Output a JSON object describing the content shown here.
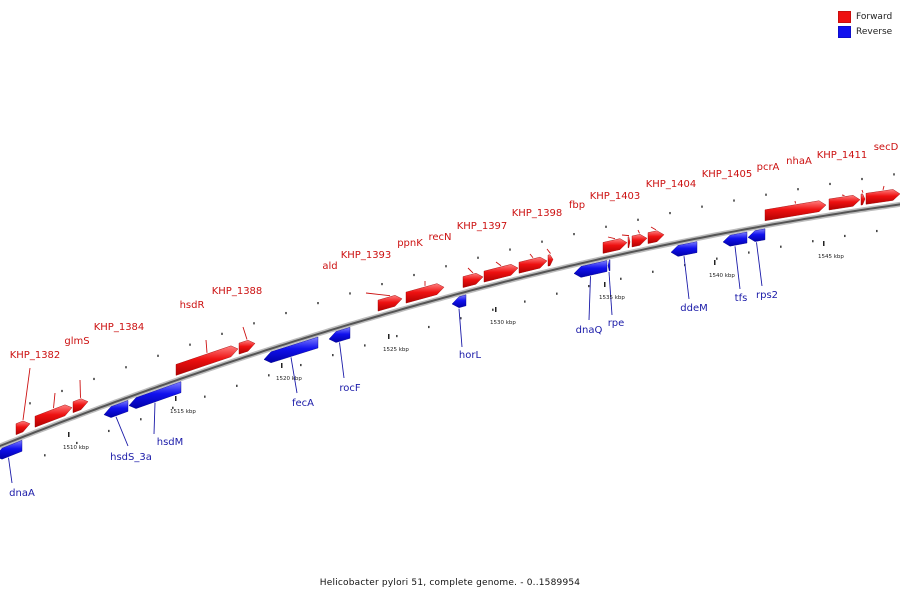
{
  "legend": {
    "forward_label": "Forward",
    "reverse_label": "Reverse",
    "forward_color": "#ee1111",
    "reverse_color": "#1111ee"
  },
  "caption": "Helicobacter pylori 51, complete genome. - 0..1589954",
  "genes_forward": [
    {
      "name": "KHP_1382"
    },
    {
      "name": "glmS"
    },
    {
      "name": "KHP_1384"
    },
    {
      "name": "hsdR"
    },
    {
      "name": "KHP_1388"
    },
    {
      "name": "ald"
    },
    {
      "name": "KHP_1393"
    },
    {
      "name": "ppnK"
    },
    {
      "name": "recN"
    },
    {
      "name": "KHP_1397"
    },
    {
      "name": "KHP_1398"
    },
    {
      "name": "fbp"
    },
    {
      "name": "KHP_1403"
    },
    {
      "name": "KHP_1404"
    },
    {
      "name": "KHP_1405"
    },
    {
      "name": "pcrA"
    },
    {
      "name": "nhaA"
    },
    {
      "name": "KHP_1411"
    },
    {
      "name": "secD"
    }
  ],
  "genes_reverse": [
    {
      "name": "dnaA"
    },
    {
      "name": "hsdS_3a"
    },
    {
      "name": "hsdM"
    },
    {
      "name": "fecA"
    },
    {
      "name": "rocF"
    },
    {
      "name": "horL"
    },
    {
      "name": "dnaQ"
    },
    {
      "name": "rpe"
    },
    {
      "name": "ddeM"
    },
    {
      "name": "tfs"
    },
    {
      "name": "rps2"
    }
  ],
  "kbp_labels": [
    "1510 kbp",
    "1515 kbp",
    "1520 kbp",
    "1525 kbp",
    "1530 kbp",
    "1535 kbp",
    "1540 kbp",
    "1545 kbp"
  ]
}
